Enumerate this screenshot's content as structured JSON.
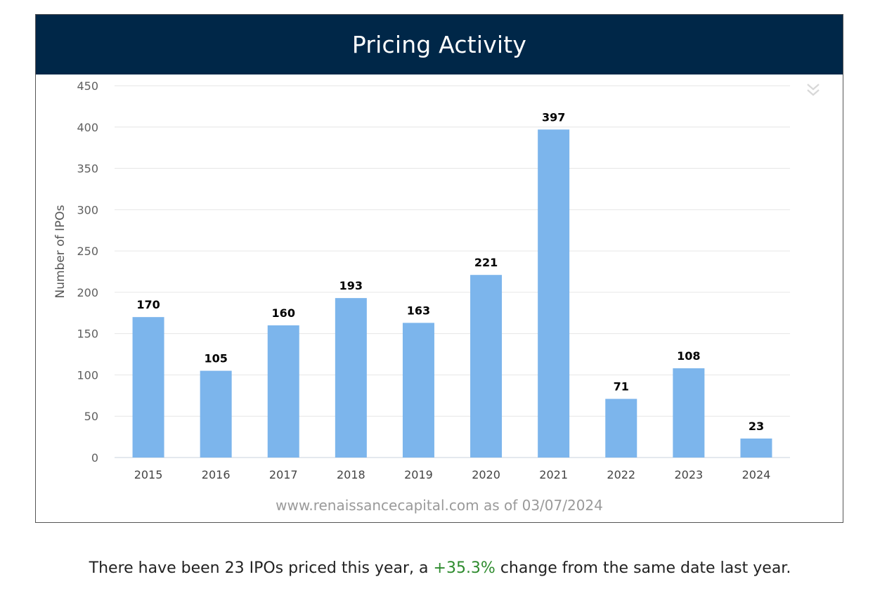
{
  "header": {
    "title": "Pricing Activity"
  },
  "source_note": "www.renaissancecapital.com as of 03/07/2024",
  "summary": {
    "before": "There have been 23 IPOs priced this year, a ",
    "change": "+35.3%",
    "after": " change from the same date last year."
  },
  "colors": {
    "header_bg": "#002748",
    "bar": "#7cb5ec",
    "positive_change": "#2e8b2e"
  },
  "menu_icon": "double-chevron-down-icon",
  "chart_data": {
    "type": "bar",
    "categories": [
      "2015",
      "2016",
      "2017",
      "2018",
      "2019",
      "2020",
      "2021",
      "2022",
      "2023",
      "2024"
    ],
    "values": [
      170,
      105,
      160,
      193,
      163,
      221,
      397,
      71,
      108,
      23
    ],
    "ylabel": "Number of IPOs",
    "xlabel": "",
    "ylim": [
      0,
      450
    ],
    "yticks": [
      0,
      50,
      100,
      150,
      200,
      250,
      300,
      350,
      400,
      450
    ],
    "grid": true,
    "data_labels": true,
    "legend": "none"
  }
}
